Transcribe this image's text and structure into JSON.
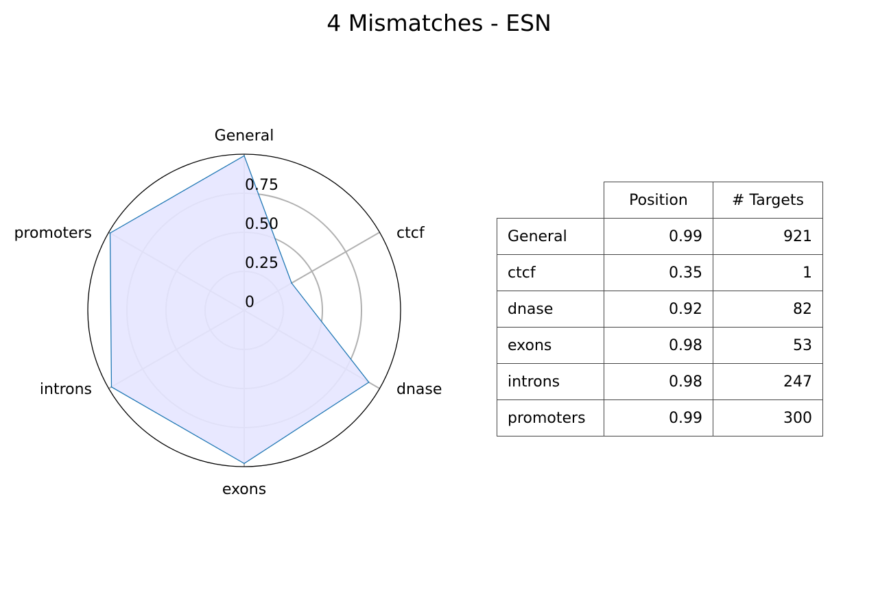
{
  "chart_data": {
    "type": "radar",
    "title": "4 Mismatches - ESN",
    "categories": [
      "General",
      "ctcf",
      "dnase",
      "exons",
      "introns",
      "promoters"
    ],
    "series": [
      {
        "values": [
          0.99,
          0.35,
          0.92,
          0.98,
          0.98,
          0.99
        ]
      }
    ],
    "radial_range": [
      0,
      1
    ],
    "radial_ticks": [
      0,
      0.25,
      0.5,
      0.75
    ],
    "radial_tick_labels": [
      "0",
      "0.25",
      "0.50",
      "0.75"
    ],
    "grid": true,
    "colors": {
      "line": "#1f77b4",
      "fill": "#e5e5ff",
      "grid": "#b0b0b0",
      "frame": "#000000"
    }
  },
  "table": {
    "columns": [
      "Position",
      "# Targets"
    ],
    "rows": [
      {
        "label": "General",
        "position": "0.99",
        "targets": "921"
      },
      {
        "label": "ctcf",
        "position": "0.35",
        "targets": "1"
      },
      {
        "label": "dnase",
        "position": "0.92",
        "targets": "82"
      },
      {
        "label": "exons",
        "position": "0.98",
        "targets": "53"
      },
      {
        "label": "introns",
        "position": "0.98",
        "targets": "247"
      },
      {
        "label": "promoters",
        "position": "0.99",
        "targets": "300"
      }
    ]
  }
}
